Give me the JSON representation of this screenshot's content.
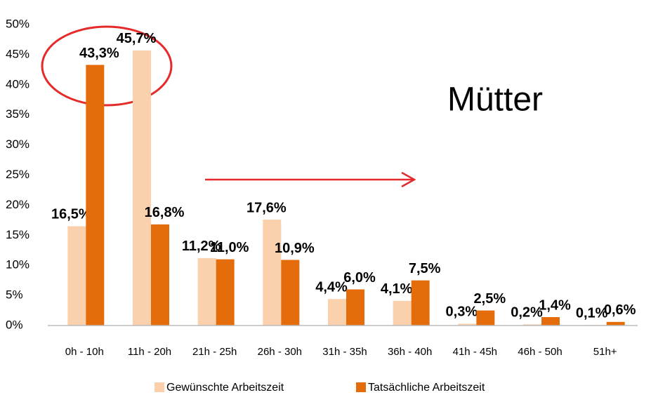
{
  "chart_data": {
    "type": "bar",
    "categories": [
      "0h - 10h",
      "11h - 20h",
      "21h - 25h",
      "26h - 30h",
      "31h - 35h",
      "36h - 40h",
      "41h - 45h",
      "46h - 50h",
      "51h+"
    ],
    "series": [
      {
        "name": "Gewünschte Arbeitszeit",
        "color": "#fbd0ad",
        "values": [
          16.5,
          45.7,
          11.2,
          17.6,
          4.4,
          4.1,
          0.3,
          0.2,
          0.1
        ],
        "value_labels": [
          "16,5%",
          "45,7%",
          "11,2%",
          "17,6%",
          "4,4%",
          "4,1%",
          "0,3%",
          "0,2%",
          "0,1%"
        ]
      },
      {
        "name": "Tatsächliche Arbeitszeit",
        "color": "#e46c0a",
        "values": [
          43.3,
          16.8,
          11.0,
          10.9,
          6.0,
          7.5,
          2.5,
          1.4,
          0.6
        ],
        "value_labels": [
          "43,3%",
          "16,8%",
          "11,0%",
          "10,9%",
          "6,0%",
          "7,5%",
          "2,5%",
          "1,4%",
          "0,6%"
        ]
      }
    ],
    "ylim": [
      0,
      50
    ],
    "yticks": [
      {
        "value": 0,
        "label": "0%"
      },
      {
        "value": 5,
        "label": "5%"
      },
      {
        "value": 10,
        "label": "10%"
      },
      {
        "value": 15,
        "label": "15%"
      },
      {
        "value": 20,
        "label": "20%"
      },
      {
        "value": 25,
        "label": "25%"
      },
      {
        "value": 30,
        "label": "30%"
      },
      {
        "value": 35,
        "label": "35%"
      },
      {
        "value": 40,
        "label": "40%"
      },
      {
        "value": 45,
        "label": "45%"
      },
      {
        "value": 50,
        "label": "50%"
      }
    ],
    "annotation": "Mütter",
    "legend": "bottom"
  }
}
